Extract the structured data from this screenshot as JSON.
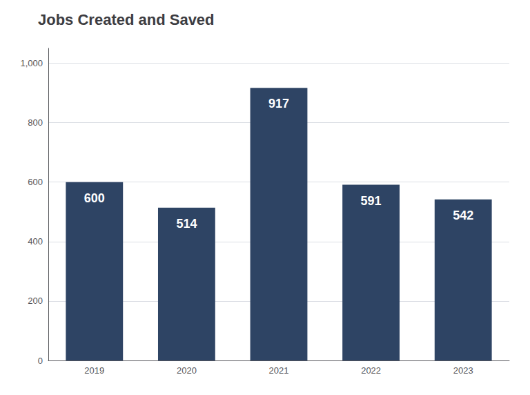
{
  "chart_data": {
    "type": "bar",
    "title": "Jobs Created and Saved",
    "categories": [
      "2019",
      "2020",
      "2021",
      "2022",
      "2023"
    ],
    "values": [
      600,
      514,
      917,
      591,
      542
    ],
    "color": "#2e4464",
    "ylim": [
      0,
      1050
    ],
    "yticks": [
      0,
      200,
      400,
      600,
      800,
      {
        "value": 1000,
        "label": "1,000"
      }
    ],
    "grid": true,
    "data_labels": true
  }
}
